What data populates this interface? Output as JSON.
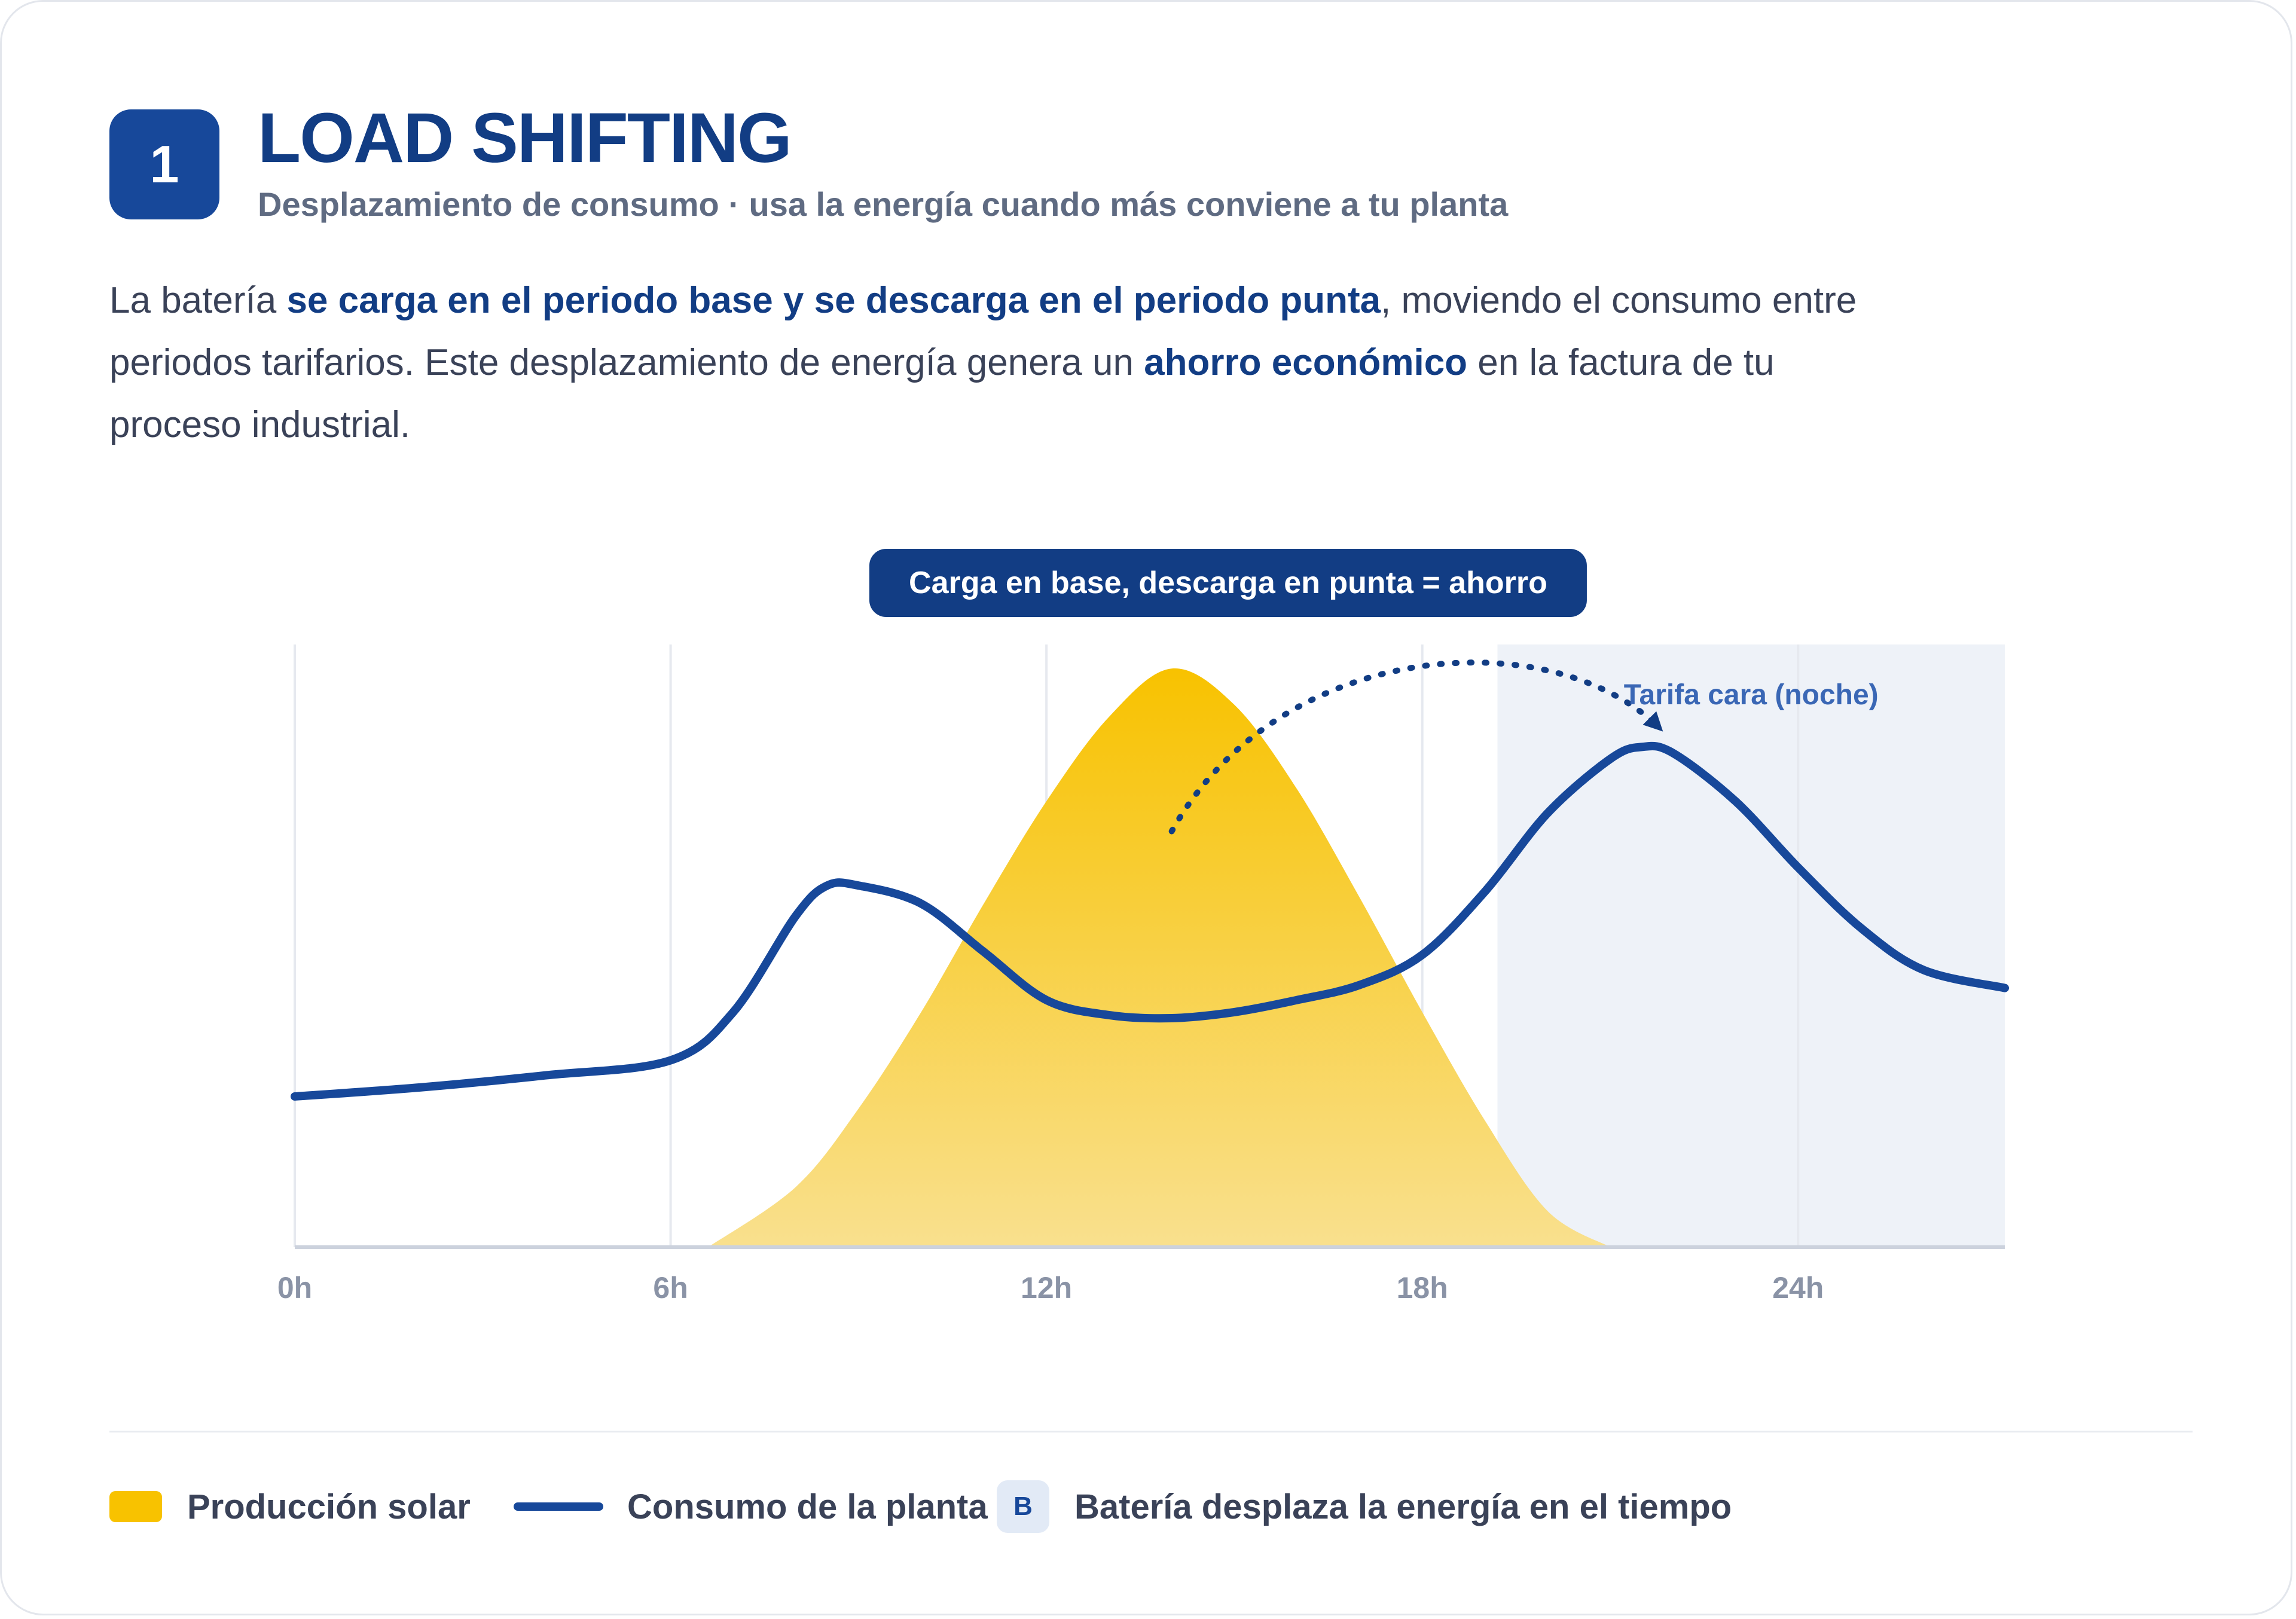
{
  "header": {
    "step_number": "1",
    "title": "LOAD SHIFTING",
    "subtitle": "Desplazamiento de consumo · usa la energía cuando más conviene a tu planta"
  },
  "description": {
    "t1": "La batería ",
    "b1": "se carga en el periodo base y se descarga en el periodo punta",
    "t2": ", moviendo el consumo entre periodos tarifarios. Este desplazamiento de energía genera un ",
    "b2": "ahorro económico",
    "t3": " en la factura de tu proceso industrial."
  },
  "chart_data": {
    "type": "area",
    "banner": "Carga en base, descarga en punta = ahorro",
    "shaded_region_label": "Tarifa cara (noche)",
    "shaded_region_x": [
      19.2,
      27.3
    ],
    "x_ticks": [
      0,
      6,
      12,
      18,
      24
    ],
    "x_tick_labels": [
      "0h",
      "6h",
      "12h",
      "18h",
      "24h"
    ],
    "xlim": [
      0,
      27.3
    ],
    "ylim": [
      0,
      100
    ],
    "grid": true,
    "series": [
      {
        "name": "Producción solar",
        "kind": "area",
        "color": "#f8c200",
        "x": [
          6.6,
          8,
          9,
          10,
          11,
          12,
          13,
          14,
          15,
          16,
          17,
          18,
          19,
          20,
          21
        ],
        "values": [
          0,
          10,
          23,
          39,
          57,
          74,
          88,
          96,
          90,
          76,
          58,
          39,
          21,
          6,
          0
        ]
      },
      {
        "name": "Consumo de la planta",
        "kind": "line",
        "color": "#17489a",
        "x": [
          0,
          2,
          4,
          6,
          7,
          8,
          8.5,
          9,
          10,
          11,
          12,
          13,
          14,
          15,
          16,
          17,
          18,
          19,
          20,
          21,
          21.5,
          22,
          23,
          24,
          25,
          26,
          27.3
        ],
        "values": [
          25,
          26.5,
          28.5,
          31,
          39,
          55,
          60,
          60,
          57,
          49,
          41,
          38.5,
          38,
          39,
          41,
          43.5,
          48.5,
          59,
          72,
          81,
          83,
          82,
          74,
          63,
          53,
          46,
          43
        ]
      }
    ],
    "annotation_arrow": {
      "from": [
        14,
        69
      ],
      "to": [
        21.8,
        86
      ],
      "style": "dotted"
    }
  },
  "legend": {
    "solar_label": "Producción solar",
    "consumption_label": "Consumo de la planta",
    "battery_badge": "B",
    "battery_label": "Batería desplaza la energía en el tiempo"
  },
  "colors": {
    "brand": "#17489a",
    "title": "#123d84",
    "solar": "#f8c200",
    "shaded": "#eef2f8"
  }
}
